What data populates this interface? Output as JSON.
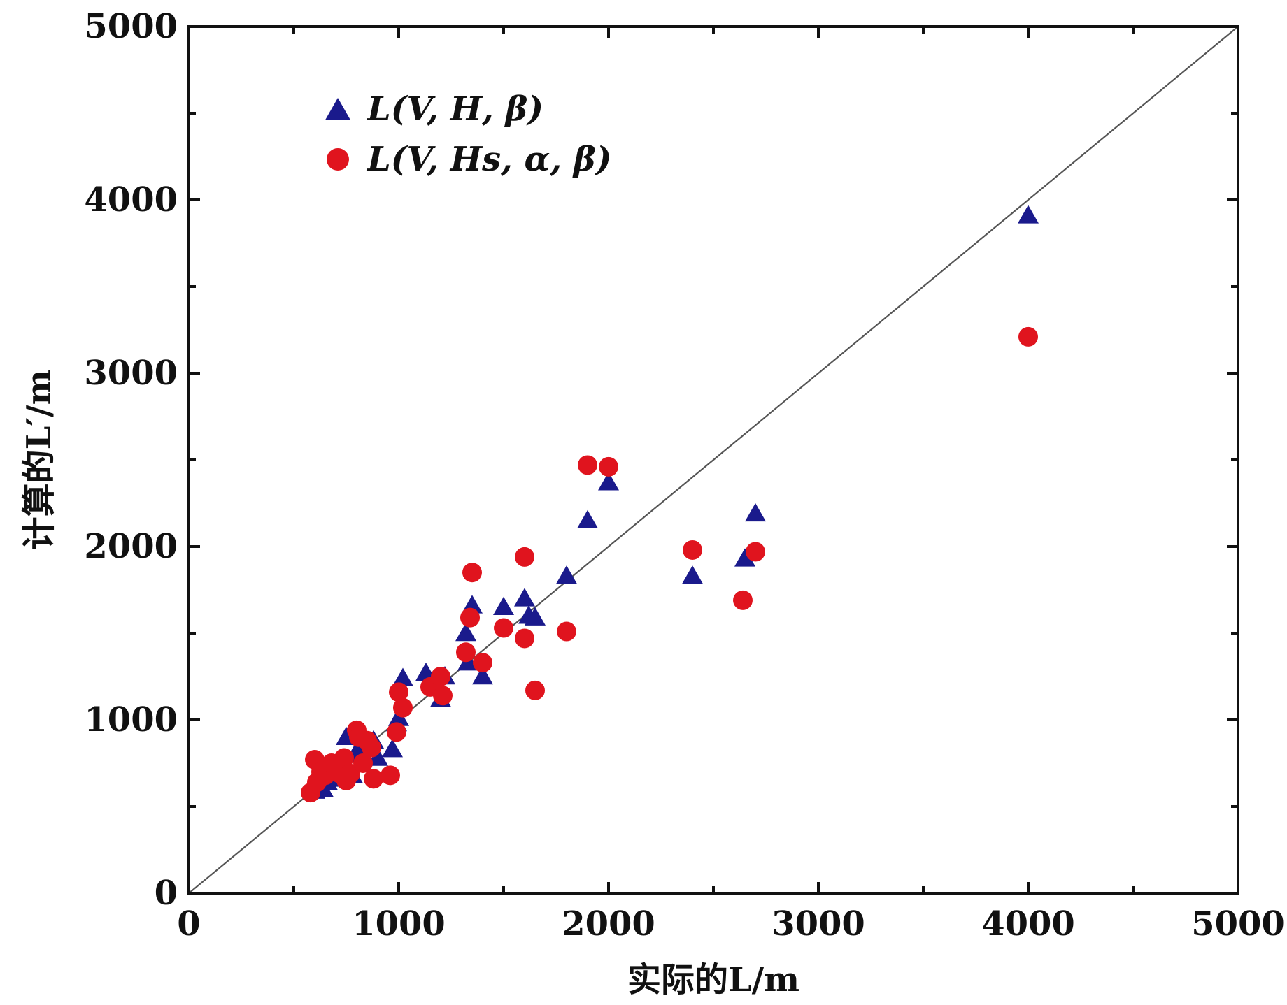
{
  "chart_data": {
    "type": "scatter",
    "xlabel": "实际的L/m",
    "ylabel": "计算的L′/m",
    "xlim": [
      0,
      5000
    ],
    "ylim": [
      0,
      5000
    ],
    "x_ticks": [
      "0",
      "1000",
      "2000",
      "3000",
      "4000",
      "5000"
    ],
    "y_ticks": [
      "0",
      "1000",
      "2000",
      "3000",
      "4000",
      "5000"
    ],
    "minor_ticks_step": 500,
    "reference_line": "y = x",
    "legend_position": "top-left",
    "grid": false,
    "series": [
      {
        "name": "L(V, H, β)",
        "marker": "triangle",
        "color": "#1a1a8c",
        "points": [
          [
            600,
            590
          ],
          [
            620,
            620
          ],
          [
            640,
            600
          ],
          [
            650,
            680
          ],
          [
            660,
            640
          ],
          [
            680,
            660
          ],
          [
            700,
            720
          ],
          [
            720,
            700
          ],
          [
            740,
            760
          ],
          [
            750,
            900
          ],
          [
            780,
            680
          ],
          [
            800,
            800
          ],
          [
            820,
            860
          ],
          [
            850,
            840
          ],
          [
            880,
            880
          ],
          [
            900,
            780
          ],
          [
            970,
            830
          ],
          [
            990,
            980
          ],
          [
            1000,
            1010
          ],
          [
            1020,
            1240
          ],
          [
            1130,
            1270
          ],
          [
            1180,
            1200
          ],
          [
            1200,
            1120
          ],
          [
            1220,
            1250
          ],
          [
            1320,
            1500
          ],
          [
            1330,
            1330
          ],
          [
            1350,
            1660
          ],
          [
            1400,
            1250
          ],
          [
            1500,
            1650
          ],
          [
            1600,
            1700
          ],
          [
            1620,
            1600
          ],
          [
            1650,
            1590
          ],
          [
            1800,
            1830
          ],
          [
            1900,
            2150
          ],
          [
            2000,
            2370
          ],
          [
            2400,
            1830
          ],
          [
            2650,
            1930
          ],
          [
            2700,
            2190
          ],
          [
            4000,
            3910
          ]
        ]
      },
      {
        "name": "L(V, Hs, α, β)",
        "marker": "circle",
        "color": "#e0141e",
        "points": [
          [
            580,
            580
          ],
          [
            600,
            770
          ],
          [
            610,
            640
          ],
          [
            630,
            700
          ],
          [
            650,
            680
          ],
          [
            680,
            750
          ],
          [
            700,
            720
          ],
          [
            720,
            690
          ],
          [
            740,
            780
          ],
          [
            750,
            650
          ],
          [
            770,
            690
          ],
          [
            800,
            940
          ],
          [
            810,
            900
          ],
          [
            830,
            750
          ],
          [
            850,
            880
          ],
          [
            870,
            840
          ],
          [
            880,
            660
          ],
          [
            960,
            680
          ],
          [
            990,
            930
          ],
          [
            1000,
            1160
          ],
          [
            1020,
            1070
          ],
          [
            1150,
            1190
          ],
          [
            1200,
            1250
          ],
          [
            1210,
            1140
          ],
          [
            1320,
            1390
          ],
          [
            1340,
            1590
          ],
          [
            1350,
            1850
          ],
          [
            1400,
            1330
          ],
          [
            1500,
            1530
          ],
          [
            1600,
            1470
          ],
          [
            1600,
            1940
          ],
          [
            1650,
            1170
          ],
          [
            1800,
            1510
          ],
          [
            1900,
            2470
          ],
          [
            2000,
            2460
          ],
          [
            2400,
            1980
          ],
          [
            2640,
            1690
          ],
          [
            2700,
            1970
          ],
          [
            4000,
            3210
          ]
        ]
      }
    ]
  }
}
